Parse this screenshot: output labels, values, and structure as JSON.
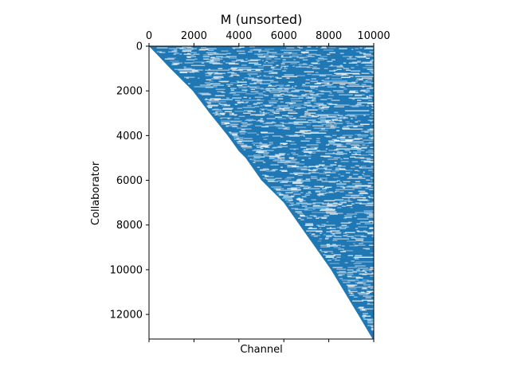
{
  "chart_data": {
    "type": "heatmap",
    "title": "M (unsorted)",
    "xlabel": "Channel",
    "ylabel": "Collaborator",
    "xlim": [
      0,
      10000
    ],
    "ylim": [
      13100,
      0
    ],
    "x_ticks": [
      0,
      2000,
      4000,
      6000,
      8000,
      10000
    ],
    "x_tick_labels": [
      "0",
      "2000",
      "4000",
      "6000",
      "8000",
      "10000"
    ],
    "x_tick_position": "top",
    "y_ticks": [
      0,
      2000,
      4000,
      6000,
      8000,
      10000,
      12000
    ],
    "y_tick_labels": [
      "0",
      "2000",
      "4000",
      "6000",
      "8000",
      "10000",
      "12000"
    ],
    "color": "#1f77b4",
    "grid": false,
    "legend": "none",
    "boundary": {
      "description": "left edge of filled region (first nonzero channel per collaborator)",
      "y": [
        0,
        1000,
        2000,
        3000,
        4000,
        4700,
        5000,
        6000,
        7000,
        8000,
        9000,
        10000,
        11000,
        12000,
        13100
      ],
      "x": [
        0,
        950,
        1950,
        2700,
        3500,
        4000,
        4300,
        5000,
        6000,
        6700,
        7400,
        8100,
        8700,
        9300,
        9950
      ]
    }
  }
}
